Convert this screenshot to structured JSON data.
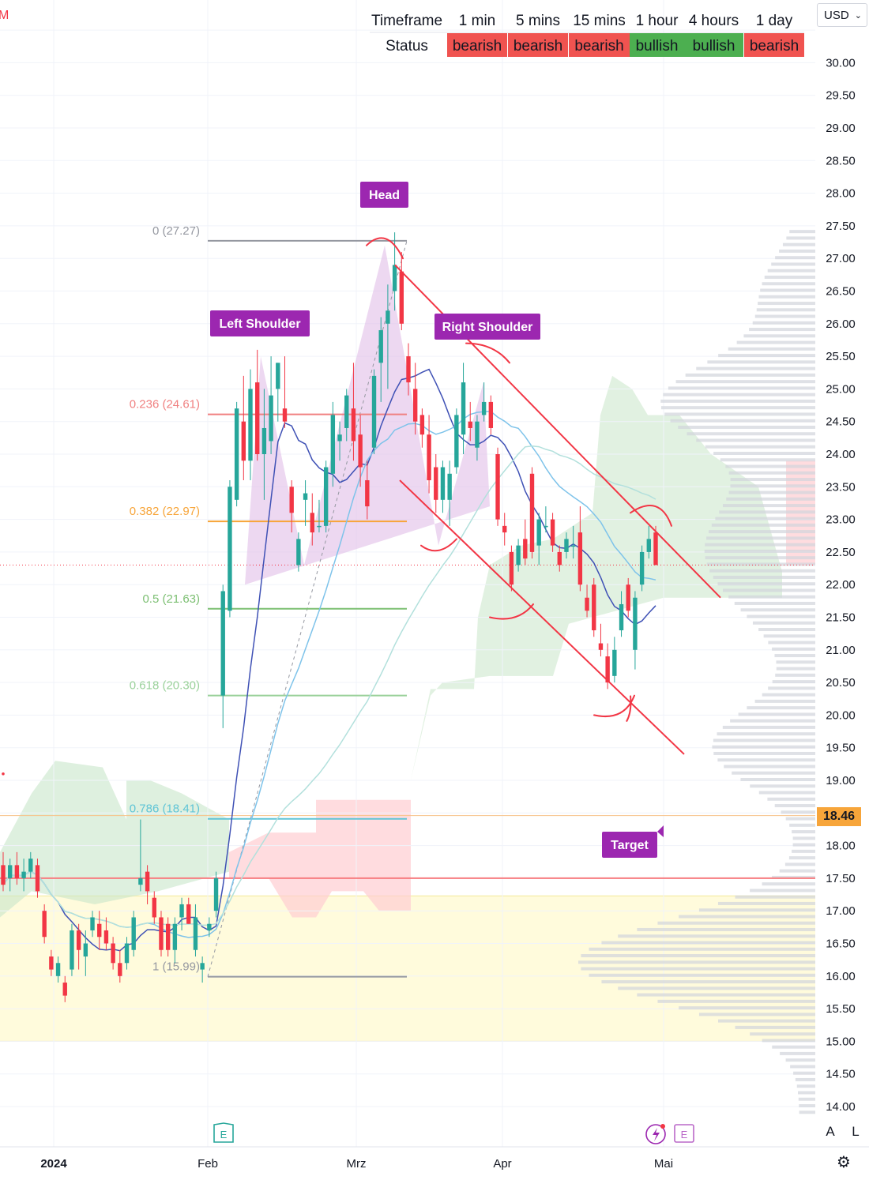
{
  "currency": "USD",
  "current_price": "18.46",
  "timeframe_table": {
    "header_label": "Timeframe",
    "status_label": "Status",
    "columns": [
      "1 min",
      "5 mins",
      "15 mins",
      "1 hour",
      "4 hours",
      "1 day"
    ],
    "statuses": [
      "bearish",
      "bearish",
      "bearish",
      "bullish",
      "bullish",
      "bearish"
    ],
    "colors": {
      "bearish": "#f05350",
      "bullish": "#4caf50"
    }
  },
  "corner_buttons": {
    "auto": "A",
    "log": "L"
  },
  "chart_data": {
    "type": "candlestick",
    "y_axis": {
      "range": [
        13.75,
        30.5
      ],
      "ticks": [
        "14.00",
        "14.50",
        "15.00",
        "15.50",
        "16.00",
        "16.50",
        "17.00",
        "17.50",
        "18.00",
        "18.50",
        "19.00",
        "19.50",
        "20.00",
        "20.50",
        "21.00",
        "21.50",
        "22.00",
        "22.50",
        "23.00",
        "23.50",
        "24.00",
        "24.50",
        "25.00",
        "25.50",
        "26.00",
        "26.50",
        "27.00",
        "27.50",
        "28.00",
        "28.50",
        "29.00",
        "29.50",
        "30.00"
      ]
    },
    "x_axis": {
      "labels": [
        "2024",
        "Feb",
        "Mrz",
        "Apr",
        "Mai"
      ]
    },
    "candles": [
      {
        "o": 17.7,
        "h": 17.9,
        "l": 17.3,
        "c": 17.4
      },
      {
        "o": 17.5,
        "h": 17.8,
        "l": 17.3,
        "c": 17.7
      },
      {
        "o": 17.7,
        "h": 17.9,
        "l": 17.4,
        "c": 17.5
      },
      {
        "o": 17.5,
        "h": 17.8,
        "l": 17.3,
        "c": 17.6
      },
      {
        "o": 17.6,
        "h": 17.9,
        "l": 17.5,
        "c": 17.8
      },
      {
        "o": 17.7,
        "h": 17.8,
        "l": 17.2,
        "c": 17.3
      },
      {
        "o": 17.0,
        "h": 17.1,
        "l": 16.5,
        "c": 16.6
      },
      {
        "o": 16.3,
        "h": 16.4,
        "l": 16.0,
        "c": 16.1
      },
      {
        "o": 16.0,
        "h": 16.3,
        "l": 15.9,
        "c": 16.2
      },
      {
        "o": 15.9,
        "h": 16.0,
        "l": 15.6,
        "c": 15.7
      },
      {
        "o": 16.1,
        "h": 16.8,
        "l": 16.0,
        "c": 16.7
      },
      {
        "o": 16.7,
        "h": 16.8,
        "l": 16.1,
        "c": 16.4
      },
      {
        "o": 16.3,
        "h": 16.7,
        "l": 16.0,
        "c": 16.5
      },
      {
        "o": 16.7,
        "h": 17.0,
        "l": 16.6,
        "c": 16.9
      },
      {
        "o": 16.8,
        "h": 17.0,
        "l": 16.4,
        "c": 16.6
      },
      {
        "o": 16.7,
        "h": 16.9,
        "l": 16.4,
        "c": 16.5
      },
      {
        "o": 16.5,
        "h": 16.6,
        "l": 16.1,
        "c": 16.2
      },
      {
        "o": 16.2,
        "h": 16.4,
        "l": 15.9,
        "c": 16.0
      },
      {
        "o": 16.2,
        "h": 16.6,
        "l": 16.1,
        "c": 16.5
      },
      {
        "o": 16.4,
        "h": 17.0,
        "l": 16.3,
        "c": 16.9
      },
      {
        "o": 17.4,
        "h": 18.4,
        "l": 17.3,
        "c": 17.5
      },
      {
        "o": 17.6,
        "h": 17.7,
        "l": 17.1,
        "c": 17.3
      },
      {
        "o": 17.2,
        "h": 17.3,
        "l": 16.8,
        "c": 16.9
      },
      {
        "o": 16.9,
        "h": 17.0,
        "l": 16.3,
        "c": 16.4
      },
      {
        "o": 16.8,
        "h": 16.9,
        "l": 16.3,
        "c": 16.4
      },
      {
        "o": 16.4,
        "h": 16.9,
        "l": 16.2,
        "c": 16.8
      },
      {
        "o": 16.9,
        "h": 17.2,
        "l": 16.7,
        "c": 17.1
      },
      {
        "o": 17.1,
        "h": 17.2,
        "l": 16.8,
        "c": 16.8
      },
      {
        "o": 16.4,
        "h": 17.1,
        "l": 16.3,
        "c": 16.9
      },
      {
        "o": 16.1,
        "h": 16.3,
        "l": 15.9,
        "c": 16.2
      },
      {
        "o": 16.7,
        "h": 16.9,
        "l": 16.6,
        "c": 16.8
      },
      {
        "o": 17.0,
        "h": 17.6,
        "l": 16.9,
        "c": 17.5
      },
      {
        "o": 20.3,
        "h": 22.0,
        "l": 19.8,
        "c": 21.9
      },
      {
        "o": 21.6,
        "h": 23.6,
        "l": 21.5,
        "c": 23.5
      },
      {
        "o": 23.3,
        "h": 24.8,
        "l": 23.2,
        "c": 24.7
      },
      {
        "o": 24.5,
        "h": 25.2,
        "l": 23.6,
        "c": 23.9
      },
      {
        "o": 23.9,
        "h": 25.3,
        "l": 23.6,
        "c": 25.0
      },
      {
        "o": 25.1,
        "h": 25.6,
        "l": 23.9,
        "c": 24.0
      },
      {
        "o": 24.0,
        "h": 25.0,
        "l": 23.3,
        "c": 24.4
      },
      {
        "o": 24.2,
        "h": 25.5,
        "l": 24.0,
        "c": 24.9
      },
      {
        "o": 25.0,
        "h": 25.4,
        "l": 24.5,
        "c": 25.4
      },
      {
        "o": 24.7,
        "h": 25.5,
        "l": 24.4,
        "c": 24.5
      },
      {
        "o": 23.5,
        "h": 23.6,
        "l": 22.8,
        "c": 23.1
      },
      {
        "o": 22.3,
        "h": 22.8,
        "l": 22.2,
        "c": 22.7
      },
      {
        "o": 23.3,
        "h": 23.6,
        "l": 22.9,
        "c": 23.4
      },
      {
        "o": 23.1,
        "h": 23.4,
        "l": 22.6,
        "c": 22.8
      },
      {
        "o": 22.9,
        "h": 23.3,
        "l": 22.8,
        "c": 22.9
      },
      {
        "o": 22.9,
        "h": 23.9,
        "l": 22.8,
        "c": 23.8
      },
      {
        "o": 23.7,
        "h": 24.8,
        "l": 23.5,
        "c": 24.6
      },
      {
        "o": 24.2,
        "h": 24.5,
        "l": 23.9,
        "c": 24.3
      },
      {
        "o": 24.4,
        "h": 25.0,
        "l": 24.2,
        "c": 24.9
      },
      {
        "o": 24.7,
        "h": 25.4,
        "l": 23.9,
        "c": 24.2
      },
      {
        "o": 24.3,
        "h": 24.6,
        "l": 23.5,
        "c": 23.8
      },
      {
        "o": 23.6,
        "h": 23.9,
        "l": 23.0,
        "c": 23.2
      },
      {
        "o": 24.1,
        "h": 25.3,
        "l": 24.0,
        "c": 25.2
      },
      {
        "o": 25.4,
        "h": 26.1,
        "l": 24.8,
        "c": 25.9
      },
      {
        "o": 26.0,
        "h": 26.6,
        "l": 25.0,
        "c": 26.2
      },
      {
        "o": 26.5,
        "h": 27.4,
        "l": 26.2,
        "c": 26.9
      },
      {
        "o": 26.8,
        "h": 27.1,
        "l": 25.9,
        "c": 26.0
      },
      {
        "o": 25.5,
        "h": 25.7,
        "l": 24.9,
        "c": 25.1
      },
      {
        "o": 25.0,
        "h": 25.4,
        "l": 24.3,
        "c": 24.5
      },
      {
        "o": 24.6,
        "h": 24.7,
        "l": 24.1,
        "c": 24.3
      },
      {
        "o": 24.3,
        "h": 24.6,
        "l": 23.4,
        "c": 23.6
      },
      {
        "o": 23.8,
        "h": 24.0,
        "l": 23.1,
        "c": 23.3
      },
      {
        "o": 23.3,
        "h": 23.9,
        "l": 23.1,
        "c": 23.8
      },
      {
        "o": 23.3,
        "h": 23.9,
        "l": 22.9,
        "c": 23.7
      },
      {
        "o": 23.8,
        "h": 24.7,
        "l": 23.7,
        "c": 24.6
      },
      {
        "o": 24.3,
        "h": 25.4,
        "l": 24.0,
        "c": 25.1
      },
      {
        "o": 24.5,
        "h": 24.8,
        "l": 24.2,
        "c": 24.4
      },
      {
        "o": 24.1,
        "h": 24.6,
        "l": 23.9,
        "c": 24.5
      },
      {
        "o": 24.6,
        "h": 25.1,
        "l": 24.5,
        "c": 24.8
      },
      {
        "o": 24.8,
        "h": 24.9,
        "l": 24.3,
        "c": 24.4
      },
      {
        "o": 24.0,
        "h": 24.1,
        "l": 22.9,
        "c": 23.0
      },
      {
        "o": 22.9,
        "h": 23.1,
        "l": 22.6,
        "c": 22.8
      },
      {
        "o": 22.5,
        "h": 22.6,
        "l": 21.9,
        "c": 22.0
      },
      {
        "o": 22.3,
        "h": 22.7,
        "l": 22.2,
        "c": 22.6
      },
      {
        "o": 22.7,
        "h": 23.0,
        "l": 22.3,
        "c": 22.4
      },
      {
        "o": 23.7,
        "h": 23.8,
        "l": 22.4,
        "c": 22.5
      },
      {
        "o": 22.6,
        "h": 23.1,
        "l": 22.3,
        "c": 23.0
      },
      {
        "o": 22.9,
        "h": 23.2,
        "l": 22.8,
        "c": 22.9
      },
      {
        "o": 23.0,
        "h": 23.1,
        "l": 22.5,
        "c": 22.6
      },
      {
        "o": 22.5,
        "h": 22.6,
        "l": 22.2,
        "c": 22.3
      },
      {
        "o": 22.5,
        "h": 22.8,
        "l": 22.4,
        "c": 22.7
      },
      {
        "o": 22.6,
        "h": 22.9,
        "l": 22.4,
        "c": 22.6
      },
      {
        "o": 22.8,
        "h": 23.2,
        "l": 21.9,
        "c": 22.0
      },
      {
        "o": 21.8,
        "h": 22.0,
        "l": 21.5,
        "c": 21.6
      },
      {
        "o": 22.0,
        "h": 22.1,
        "l": 21.2,
        "c": 21.3
      },
      {
        "o": 21.1,
        "h": 21.4,
        "l": 20.9,
        "c": 21.0
      },
      {
        "o": 20.9,
        "h": 21.1,
        "l": 20.4,
        "c": 20.5
      },
      {
        "o": 20.6,
        "h": 21.2,
        "l": 20.5,
        "c": 21.0
      },
      {
        "o": 21.3,
        "h": 21.9,
        "l": 21.2,
        "c": 21.7
      },
      {
        "o": 22.0,
        "h": 22.1,
        "l": 21.5,
        "c": 21.6
      },
      {
        "o": 21.0,
        "h": 21.9,
        "l": 20.7,
        "c": 21.8
      },
      {
        "o": 22.0,
        "h": 22.6,
        "l": 21.9,
        "c": 22.5
      },
      {
        "o": 22.5,
        "h": 22.9,
        "l": 22.4,
        "c": 22.7
      },
      {
        "o": 22.8,
        "h": 22.9,
        "l": 22.3,
        "c": 22.3
      }
    ],
    "fibonacci": [
      {
        "label": "0 (27.27)",
        "level": 27.27,
        "color": "#9598a1"
      },
      {
        "label": "0.236 (24.61)",
        "level": 24.61,
        "color": "#f08080"
      },
      {
        "label": "0.382 (22.97)",
        "level": 22.97,
        "color": "#f7a53a"
      },
      {
        "label": "0.5 (21.63)",
        "level": 21.63,
        "color": "#7cbf72"
      },
      {
        "label": "0.618 (20.30)",
        "level": 20.3,
        "color": "#9ad19a"
      },
      {
        "label": "0.786 (18.41)",
        "level": 18.41,
        "color": "#5fc4d6"
      },
      {
        "label": "1 (15.99)",
        "level": 15.99,
        "color": "#9598a1"
      }
    ],
    "pattern_labels": [
      "Head",
      "Left Shoulder",
      "Right Shoulder",
      "Target"
    ],
    "horizontal_levels": [
      17.5
    ],
    "colors": {
      "up": "#26a69a",
      "down": "#f23645",
      "channel": "#f23645",
      "cloud_green": "#c8e6c9",
      "cloud_red": "#ffcdd2",
      "pattern_fill": "#e1bee7",
      "label_bg": "#9c27b0",
      "volume_profile": "#d1d4dc",
      "zone_yellow": "#fff9c4"
    }
  }
}
